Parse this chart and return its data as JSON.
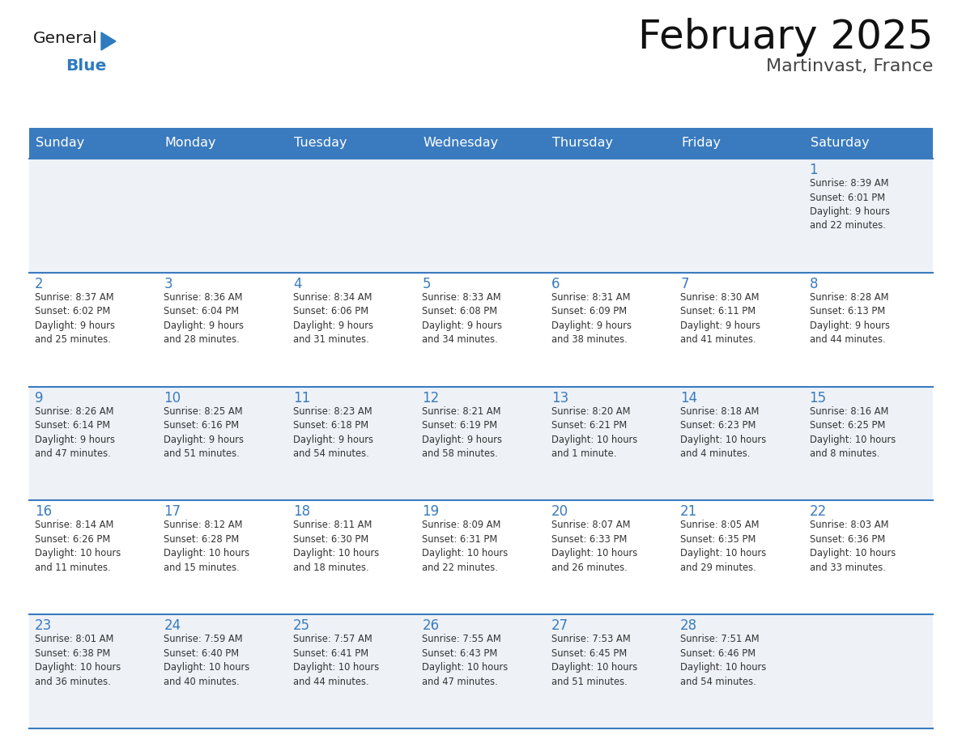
{
  "title": "February 2025",
  "subtitle": "Martinvast, France",
  "header_bg": "#3a7bbf",
  "header_text": "#ffffff",
  "day_names": [
    "Sunday",
    "Monday",
    "Tuesday",
    "Wednesday",
    "Thursday",
    "Friday",
    "Saturday"
  ],
  "title_color": "#111111",
  "subtitle_color": "#444444",
  "number_color": "#3a7bbf",
  "text_color": "#333333",
  "cell_bg_even": "#eef2f7",
  "cell_bg_odd": "#ffffff",
  "border_top_color": "#3a7bbf",
  "logo_general_color": "#1a1a1a",
  "logo_blue_color": "#2e7bbf",
  "weeks": [
    [
      {
        "day": null,
        "info": null
      },
      {
        "day": null,
        "info": null
      },
      {
        "day": null,
        "info": null
      },
      {
        "day": null,
        "info": null
      },
      {
        "day": null,
        "info": null
      },
      {
        "day": null,
        "info": null
      },
      {
        "day": 1,
        "info": "Sunrise: 8:39 AM\nSunset: 6:01 PM\nDaylight: 9 hours\nand 22 minutes."
      }
    ],
    [
      {
        "day": 2,
        "info": "Sunrise: 8:37 AM\nSunset: 6:02 PM\nDaylight: 9 hours\nand 25 minutes."
      },
      {
        "day": 3,
        "info": "Sunrise: 8:36 AM\nSunset: 6:04 PM\nDaylight: 9 hours\nand 28 minutes."
      },
      {
        "day": 4,
        "info": "Sunrise: 8:34 AM\nSunset: 6:06 PM\nDaylight: 9 hours\nand 31 minutes."
      },
      {
        "day": 5,
        "info": "Sunrise: 8:33 AM\nSunset: 6:08 PM\nDaylight: 9 hours\nand 34 minutes."
      },
      {
        "day": 6,
        "info": "Sunrise: 8:31 AM\nSunset: 6:09 PM\nDaylight: 9 hours\nand 38 minutes."
      },
      {
        "day": 7,
        "info": "Sunrise: 8:30 AM\nSunset: 6:11 PM\nDaylight: 9 hours\nand 41 minutes."
      },
      {
        "day": 8,
        "info": "Sunrise: 8:28 AM\nSunset: 6:13 PM\nDaylight: 9 hours\nand 44 minutes."
      }
    ],
    [
      {
        "day": 9,
        "info": "Sunrise: 8:26 AM\nSunset: 6:14 PM\nDaylight: 9 hours\nand 47 minutes."
      },
      {
        "day": 10,
        "info": "Sunrise: 8:25 AM\nSunset: 6:16 PM\nDaylight: 9 hours\nand 51 minutes."
      },
      {
        "day": 11,
        "info": "Sunrise: 8:23 AM\nSunset: 6:18 PM\nDaylight: 9 hours\nand 54 minutes."
      },
      {
        "day": 12,
        "info": "Sunrise: 8:21 AM\nSunset: 6:19 PM\nDaylight: 9 hours\nand 58 minutes."
      },
      {
        "day": 13,
        "info": "Sunrise: 8:20 AM\nSunset: 6:21 PM\nDaylight: 10 hours\nand 1 minute."
      },
      {
        "day": 14,
        "info": "Sunrise: 8:18 AM\nSunset: 6:23 PM\nDaylight: 10 hours\nand 4 minutes."
      },
      {
        "day": 15,
        "info": "Sunrise: 8:16 AM\nSunset: 6:25 PM\nDaylight: 10 hours\nand 8 minutes."
      }
    ],
    [
      {
        "day": 16,
        "info": "Sunrise: 8:14 AM\nSunset: 6:26 PM\nDaylight: 10 hours\nand 11 minutes."
      },
      {
        "day": 17,
        "info": "Sunrise: 8:12 AM\nSunset: 6:28 PM\nDaylight: 10 hours\nand 15 minutes."
      },
      {
        "day": 18,
        "info": "Sunrise: 8:11 AM\nSunset: 6:30 PM\nDaylight: 10 hours\nand 18 minutes."
      },
      {
        "day": 19,
        "info": "Sunrise: 8:09 AM\nSunset: 6:31 PM\nDaylight: 10 hours\nand 22 minutes."
      },
      {
        "day": 20,
        "info": "Sunrise: 8:07 AM\nSunset: 6:33 PM\nDaylight: 10 hours\nand 26 minutes."
      },
      {
        "day": 21,
        "info": "Sunrise: 8:05 AM\nSunset: 6:35 PM\nDaylight: 10 hours\nand 29 minutes."
      },
      {
        "day": 22,
        "info": "Sunrise: 8:03 AM\nSunset: 6:36 PM\nDaylight: 10 hours\nand 33 minutes."
      }
    ],
    [
      {
        "day": 23,
        "info": "Sunrise: 8:01 AM\nSunset: 6:38 PM\nDaylight: 10 hours\nand 36 minutes."
      },
      {
        "day": 24,
        "info": "Sunrise: 7:59 AM\nSunset: 6:40 PM\nDaylight: 10 hours\nand 40 minutes."
      },
      {
        "day": 25,
        "info": "Sunrise: 7:57 AM\nSunset: 6:41 PM\nDaylight: 10 hours\nand 44 minutes."
      },
      {
        "day": 26,
        "info": "Sunrise: 7:55 AM\nSunset: 6:43 PM\nDaylight: 10 hours\nand 47 minutes."
      },
      {
        "day": 27,
        "info": "Sunrise: 7:53 AM\nSunset: 6:45 PM\nDaylight: 10 hours\nand 51 minutes."
      },
      {
        "day": 28,
        "info": "Sunrise: 7:51 AM\nSunset: 6:46 PM\nDaylight: 10 hours\nand 54 minutes."
      },
      {
        "day": null,
        "info": null
      }
    ]
  ],
  "fig_width": 11.88,
  "fig_height": 9.18,
  "dpi": 100
}
